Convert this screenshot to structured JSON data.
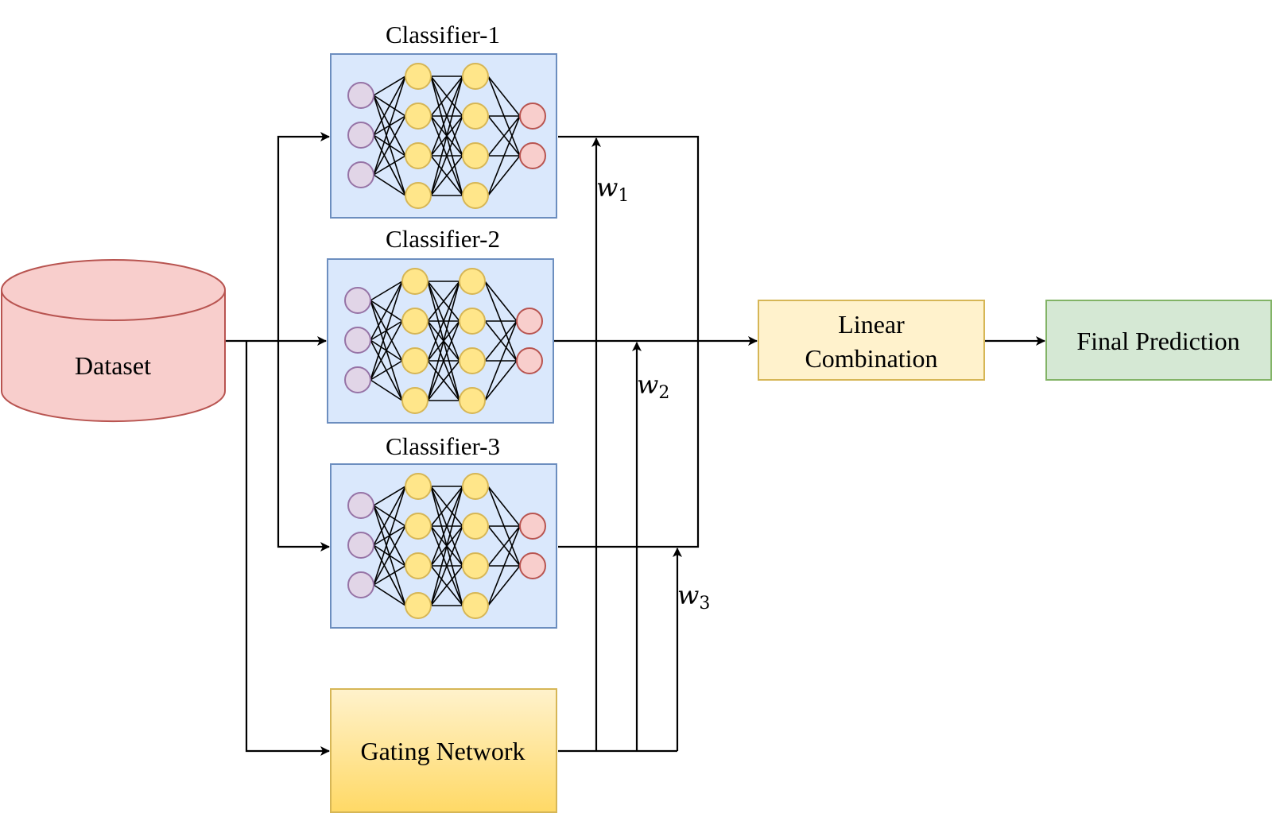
{
  "nodes": {
    "dataset": {
      "label": "Dataset"
    },
    "classifiers": [
      {
        "label": "Classifier-1"
      },
      {
        "label": "Classifier-2"
      },
      {
        "label": "Classifier-3"
      }
    ],
    "gating": {
      "label": "Gating Network"
    },
    "linear_combination": {
      "label_line1": "Linear",
      "label_line2": "Combination"
    },
    "final_prediction": {
      "label": "Final Prediction"
    }
  },
  "weights": [
    {
      "symbol": "w",
      "sub": "1"
    },
    {
      "symbol": "w",
      "sub": "2"
    },
    {
      "symbol": "w",
      "sub": "3"
    }
  ],
  "colors": {
    "dataset_fill": "#f8cecc",
    "dataset_stroke": "#b85450",
    "classifier_fill": "#dae8fc",
    "classifier_stroke": "#6c8ebf",
    "input_neuron_fill": "#e1d5e7",
    "input_neuron_stroke": "#9673a6",
    "hidden_neuron_fill": "#ffe68a",
    "hidden_neuron_stroke": "#d6b656",
    "output_neuron_fill": "#f8cecc",
    "output_neuron_stroke": "#b85450",
    "gating_fill_top": "#fff2cc",
    "gating_fill_bottom": "#ffd966",
    "gating_stroke": "#d6b656",
    "linear_fill": "#fff2cc",
    "linear_stroke": "#d6b656",
    "final_fill": "#d5e8d4",
    "final_stroke": "#82b366"
  }
}
